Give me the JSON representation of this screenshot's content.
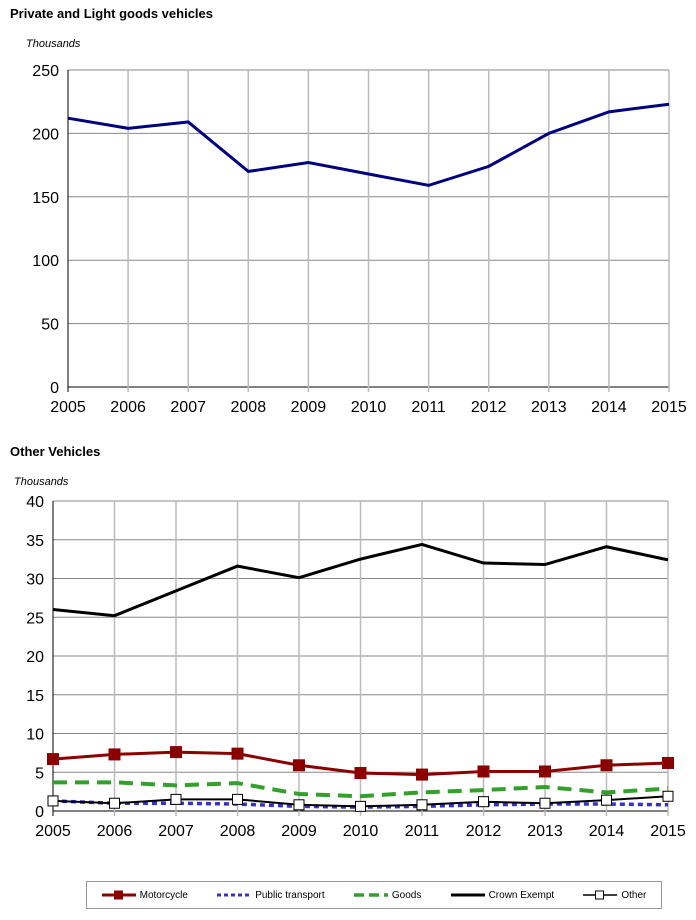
{
  "chart_data": [
    {
      "type": "line",
      "title": "Private and Light goods vehicles",
      "ylabel": "Thousands",
      "categories": [
        "2005",
        "2006",
        "2007",
        "2008",
        "2009",
        "2010",
        "2011",
        "2012",
        "2013",
        "2014",
        "2015"
      ],
      "ylim": [
        0,
        250
      ],
      "yticks": [
        0,
        50,
        100,
        150,
        200,
        250
      ],
      "grid": true,
      "series": [
        {
          "values": [
            212,
            204,
            209,
            170,
            177,
            168,
            159,
            174,
            200,
            217,
            223
          ],
          "color": "#000080"
        }
      ]
    },
    {
      "type": "line",
      "title": "Other Vehicles",
      "ylabel": "Thousands",
      "categories": [
        "2005",
        "2006",
        "2007",
        "2008",
        "2009",
        "2010",
        "2011",
        "2012",
        "2013",
        "2014",
        "2015"
      ],
      "ylim": [
        0,
        40
      ],
      "yticks": [
        0,
        5,
        10,
        15,
        20,
        25,
        30,
        35,
        40
      ],
      "grid": true,
      "legend": "bottom",
      "series": [
        {
          "name": "Motorcycle",
          "values": [
            6.7,
            7.3,
            7.6,
            7.4,
            5.9,
            4.9,
            4.7,
            5.1,
            5.1,
            5.9,
            6.2
          ],
          "color": "#8b0000",
          "marker": "filled-square",
          "dash": "solid"
        },
        {
          "name": "Public transport",
          "values": [
            1.3,
            1.0,
            1.0,
            0.9,
            0.6,
            0.5,
            0.6,
            0.8,
            0.9,
            0.9,
            0.8
          ],
          "color": "#3333cc",
          "marker": "none",
          "dash": "dotted"
        },
        {
          "name": "Goods",
          "values": [
            3.7,
            3.7,
            3.3,
            3.6,
            2.2,
            1.9,
            2.4,
            2.7,
            3.1,
            2.4,
            2.9
          ],
          "color": "#33a02c",
          "marker": "none",
          "dash": "dashed"
        },
        {
          "name": "Crown Exempt",
          "values": [
            26.0,
            25.2,
            28.4,
            31.6,
            30.1,
            32.5,
            34.4,
            32.0,
            31.8,
            34.1,
            32.4
          ],
          "color": "#000000",
          "marker": "none",
          "dash": "solid"
        },
        {
          "name": "Other",
          "values": [
            1.3,
            1.0,
            1.5,
            1.5,
            0.8,
            0.6,
            0.8,
            1.2,
            1.0,
            1.4,
            1.9
          ],
          "color": "#000000",
          "marker": "open-square",
          "dash": "solid"
        }
      ]
    }
  ]
}
